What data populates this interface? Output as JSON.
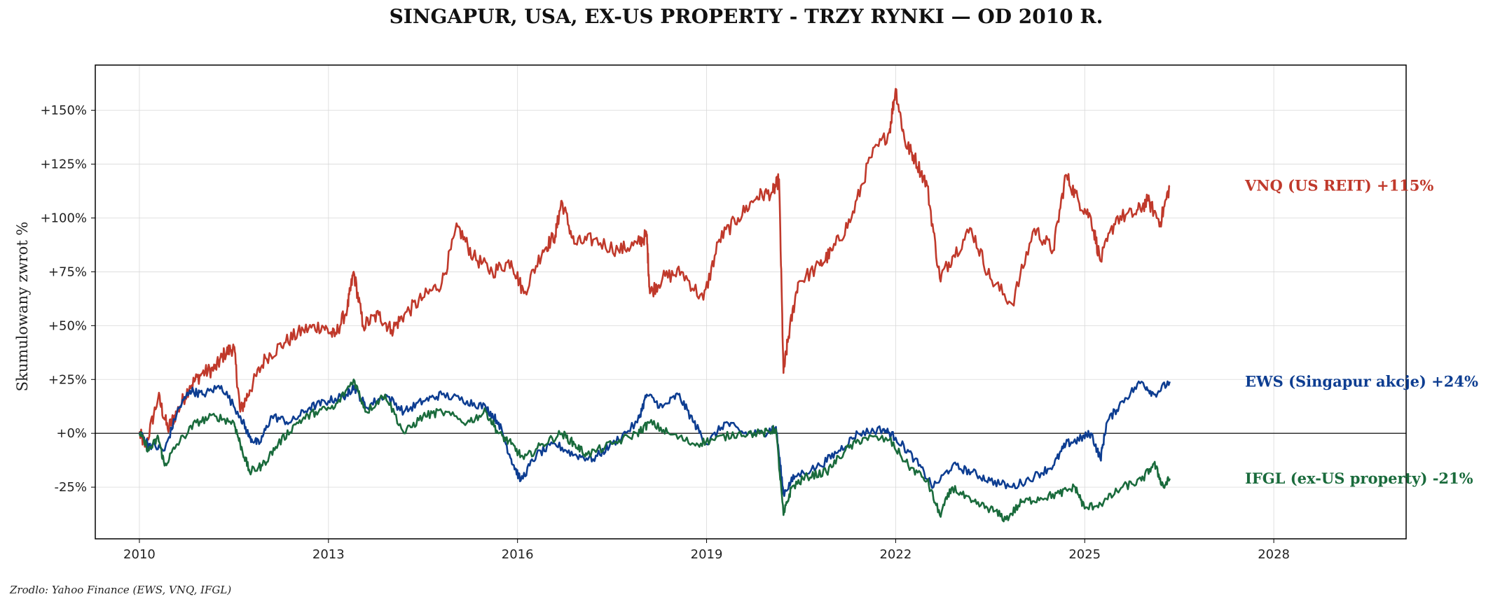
{
  "chart_data": {
    "type": "line",
    "title": "SINGAPUR, USA, EX-US PROPERTY - TRZY RYNKI — OD 2010 R.",
    "ylabel": "Skumulowany zwrot %",
    "xlabel": "",
    "xlim": [
      2009.3,
      2030.1
    ],
    "ylim": [
      -49,
      171
    ],
    "x_ticks": [
      2010,
      2013,
      2016,
      2019,
      2022,
      2025,
      2028
    ],
    "x_tick_labels": [
      "2010",
      "2013",
      "2016",
      "2019",
      "2022",
      "2025",
      "2028"
    ],
    "y_ticks": [
      -25,
      0,
      25,
      50,
      75,
      100,
      125,
      150
    ],
    "y_tick_labels": [
      "-25%",
      "+0%",
      "+25%",
      "+50%",
      "+75%",
      "+100%",
      "+125%",
      "+150%"
    ],
    "grid": true,
    "zero_line": true,
    "series": [
      {
        "name": "VNQ (US REIT)",
        "end_label": "VNQ (US REIT)  +115%",
        "color": "#c0392b",
        "points": [
          [
            2010.0,
            0
          ],
          [
            2010.1,
            -6
          ],
          [
            2010.3,
            17
          ],
          [
            2010.45,
            2
          ],
          [
            2010.6,
            10
          ],
          [
            2010.8,
            22
          ],
          [
            2011.0,
            28
          ],
          [
            2011.2,
            30
          ],
          [
            2011.35,
            37
          ],
          [
            2011.5,
            40
          ],
          [
            2011.6,
            10
          ],
          [
            2011.75,
            20
          ],
          [
            2012.0,
            35
          ],
          [
            2012.3,
            42
          ],
          [
            2012.6,
            48
          ],
          [
            2012.9,
            50
          ],
          [
            2013.1,
            45
          ],
          [
            2013.3,
            58
          ],
          [
            2013.4,
            75
          ],
          [
            2013.55,
            50
          ],
          [
            2013.8,
            55
          ],
          [
            2014.0,
            48
          ],
          [
            2014.2,
            55
          ],
          [
            2014.5,
            63
          ],
          [
            2014.8,
            70
          ],
          [
            2015.05,
            96
          ],
          [
            2015.3,
            82
          ],
          [
            2015.6,
            75
          ],
          [
            2015.9,
            80
          ],
          [
            2016.1,
            65
          ],
          [
            2016.4,
            85
          ],
          [
            2016.6,
            92
          ],
          [
            2016.7,
            108
          ],
          [
            2016.9,
            88
          ],
          [
            2017.2,
            90
          ],
          [
            2017.6,
            85
          ],
          [
            2017.9,
            88
          ],
          [
            2018.05,
            92
          ],
          [
            2018.1,
            65
          ],
          [
            2018.3,
            72
          ],
          [
            2018.6,
            75
          ],
          [
            2018.95,
            62
          ],
          [
            2019.2,
            90
          ],
          [
            2019.5,
            100
          ],
          [
            2019.8,
            110
          ],
          [
            2020.05,
            112
          ],
          [
            2020.15,
            118
          ],
          [
            2020.22,
            28
          ],
          [
            2020.3,
            45
          ],
          [
            2020.45,
            70
          ],
          [
            2020.8,
            78
          ],
          [
            2021.0,
            85
          ],
          [
            2021.3,
            100
          ],
          [
            2021.6,
            128
          ],
          [
            2021.9,
            140
          ],
          [
            2022.0,
            160
          ],
          [
            2022.15,
            135
          ],
          [
            2022.3,
            128
          ],
          [
            2022.5,
            115
          ],
          [
            2022.7,
            72
          ],
          [
            2022.9,
            82
          ],
          [
            2023.2,
            95
          ],
          [
            2023.5,
            72
          ],
          [
            2023.85,
            60
          ],
          [
            2024.2,
            95
          ],
          [
            2024.5,
            85
          ],
          [
            2024.7,
            120
          ],
          [
            2024.9,
            108
          ],
          [
            2025.1,
            100
          ],
          [
            2025.25,
            80
          ],
          [
            2025.5,
            100
          ],
          [
            2025.8,
            102
          ],
          [
            2026.0,
            108
          ],
          [
            2026.2,
            98
          ],
          [
            2026.35,
            115
          ]
        ]
      },
      {
        "name": "EWS (Singapur akcje)",
        "end_label": "EWS (Singapur akcje)  +24%",
        "color": "#0d3d91",
        "points": [
          [
            2010.0,
            0
          ],
          [
            2010.15,
            -5
          ],
          [
            2010.4,
            -8
          ],
          [
            2010.6,
            10
          ],
          [
            2010.8,
            20
          ],
          [
            2011.0,
            18
          ],
          [
            2011.3,
            22
          ],
          [
            2011.6,
            8
          ],
          [
            2011.75,
            -2
          ],
          [
            2011.9,
            -5
          ],
          [
            2012.1,
            8
          ],
          [
            2012.4,
            5
          ],
          [
            2012.7,
            12
          ],
          [
            2013.0,
            15
          ],
          [
            2013.3,
            18
          ],
          [
            2013.4,
            22
          ],
          [
            2013.6,
            12
          ],
          [
            2013.9,
            18
          ],
          [
            2014.2,
            10
          ],
          [
            2014.5,
            15
          ],
          [
            2014.8,
            18
          ],
          [
            2015.2,
            15
          ],
          [
            2015.5,
            12
          ],
          [
            2015.7,
            5
          ],
          [
            2015.9,
            -12
          ],
          [
            2016.05,
            -22
          ],
          [
            2016.3,
            -10
          ],
          [
            2016.6,
            -5
          ],
          [
            2016.9,
            -10
          ],
          [
            2017.2,
            -12
          ],
          [
            2017.5,
            -5
          ],
          [
            2017.9,
            5
          ],
          [
            2018.05,
            18
          ],
          [
            2018.3,
            12
          ],
          [
            2018.55,
            18
          ],
          [
            2018.8,
            5
          ],
          [
            2019.0,
            -5
          ],
          [
            2019.3,
            5
          ],
          [
            2019.6,
            0
          ],
          [
            2019.9,
            0
          ],
          [
            2020.1,
            3
          ],
          [
            2020.22,
            -28
          ],
          [
            2020.4,
            -20
          ],
          [
            2020.8,
            -15
          ],
          [
            2021.1,
            -8
          ],
          [
            2021.4,
            0
          ],
          [
            2021.8,
            2
          ],
          [
            2022.0,
            -2
          ],
          [
            2022.3,
            -12
          ],
          [
            2022.6,
            -25
          ],
          [
            2022.9,
            -15
          ],
          [
            2023.2,
            -18
          ],
          [
            2023.5,
            -22
          ],
          [
            2023.85,
            -25
          ],
          [
            2024.2,
            -20
          ],
          [
            2024.5,
            -15
          ],
          [
            2024.7,
            -5
          ],
          [
            2024.9,
            -3
          ],
          [
            2025.1,
            0
          ],
          [
            2025.25,
            -12
          ],
          [
            2025.35,
            5
          ],
          [
            2025.6,
            15
          ],
          [
            2025.9,
            24
          ],
          [
            2026.1,
            18
          ],
          [
            2026.35,
            24
          ]
        ]
      },
      {
        "name": "IFGL (ex-US property)",
        "end_label": "IFGL (ex-US property)  -21%",
        "color": "#1a6b3c",
        "points": [
          [
            2010.0,
            0
          ],
          [
            2010.15,
            -8
          ],
          [
            2010.3,
            -2
          ],
          [
            2010.4,
            -15
          ],
          [
            2010.6,
            -5
          ],
          [
            2010.9,
            5
          ],
          [
            2011.2,
            8
          ],
          [
            2011.5,
            5
          ],
          [
            2011.6,
            -5
          ],
          [
            2011.75,
            -18
          ],
          [
            2011.95,
            -15
          ],
          [
            2012.2,
            -5
          ],
          [
            2012.5,
            5
          ],
          [
            2012.8,
            10
          ],
          [
            2013.1,
            12
          ],
          [
            2013.4,
            25
          ],
          [
            2013.6,
            10
          ],
          [
            2013.9,
            18
          ],
          [
            2014.2,
            0
          ],
          [
            2014.5,
            8
          ],
          [
            2014.8,
            10
          ],
          [
            2015.2,
            5
          ],
          [
            2015.5,
            10
          ],
          [
            2015.7,
            0
          ],
          [
            2015.9,
            -5
          ],
          [
            2016.1,
            -12
          ],
          [
            2016.4,
            -5
          ],
          [
            2016.7,
            0
          ],
          [
            2016.9,
            -5
          ],
          [
            2017.1,
            -10
          ],
          [
            2017.5,
            -5
          ],
          [
            2017.9,
            0
          ],
          [
            2018.1,
            5
          ],
          [
            2018.4,
            0
          ],
          [
            2018.8,
            -5
          ],
          [
            2019.1,
            -3
          ],
          [
            2019.5,
            0
          ],
          [
            2019.9,
            0
          ],
          [
            2020.1,
            2
          ],
          [
            2020.22,
            -38
          ],
          [
            2020.35,
            -25
          ],
          [
            2020.6,
            -20
          ],
          [
            2020.9,
            -18
          ],
          [
            2021.2,
            -8
          ],
          [
            2021.5,
            -2
          ],
          [
            2021.9,
            -3
          ],
          [
            2022.2,
            -15
          ],
          [
            2022.5,
            -22
          ],
          [
            2022.7,
            -38
          ],
          [
            2022.9,
            -25
          ],
          [
            2023.2,
            -32
          ],
          [
            2023.5,
            -35
          ],
          [
            2023.75,
            -40
          ],
          [
            2024.0,
            -32
          ],
          [
            2024.3,
            -30
          ],
          [
            2024.6,
            -28
          ],
          [
            2024.85,
            -25
          ],
          [
            2025.0,
            -35
          ],
          [
            2025.3,
            -32
          ],
          [
            2025.6,
            -25
          ],
          [
            2025.9,
            -22
          ],
          [
            2026.1,
            -14
          ],
          [
            2026.25,
            -25
          ],
          [
            2026.35,
            -21
          ]
        ]
      }
    ]
  },
  "source": "Zrodlo: Yahoo Finance (EWS, VNQ, IFGL)"
}
